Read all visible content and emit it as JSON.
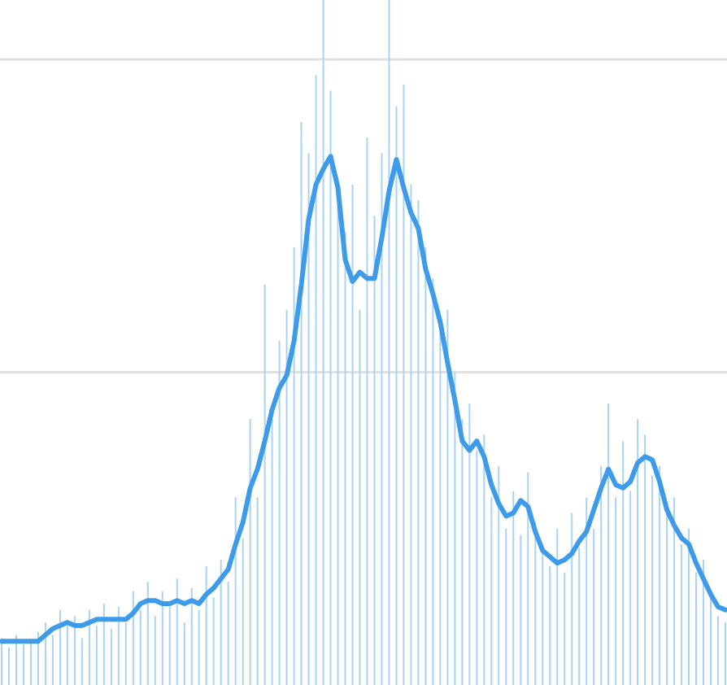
{
  "chart_data": {
    "type": "bar",
    "ylim": [
      0,
      2.19
    ],
    "yticks": [
      1,
      2
    ],
    "grid": true,
    "tick_labels": false,
    "series": [
      {
        "type": "bar",
        "color": "#a9d3f5",
        "values": [
          0.15,
          0.12,
          0.16,
          0.13,
          0.14,
          0.17,
          0.2,
          0.16,
          0.24,
          0.19,
          0.22,
          0.15,
          0.24,
          0.19,
          0.26,
          0.18,
          0.25,
          0.2,
          0.3,
          0.24,
          0.33,
          0.22,
          0.3,
          0.25,
          0.34,
          0.2,
          0.31,
          0.24,
          0.38,
          0.28,
          0.4,
          0.33,
          0.6,
          0.47,
          0.85,
          0.6,
          1.28,
          0.85,
          1.1,
          1.2,
          1.4,
          1.8,
          1.7,
          1.95,
          2.19,
          1.9,
          1.62,
          1.45,
          1.6,
          1.2,
          1.75,
          1.5,
          1.7,
          2.19,
          1.85,
          1.92,
          1.6,
          1.55,
          1.4,
          1.3,
          1.15,
          1.2,
          1.0,
          0.85,
          0.9,
          0.75,
          0.8,
          0.6,
          0.7,
          0.5,
          0.62,
          0.48,
          0.68,
          0.52,
          0.45,
          0.38,
          0.5,
          0.36,
          0.55,
          0.44,
          0.6,
          0.5,
          0.7,
          0.9,
          0.6,
          0.78,
          0.62,
          0.85,
          0.8,
          0.67,
          0.7,
          0.58,
          0.6,
          0.45,
          0.5,
          0.36,
          0.4,
          0.3,
          0.22,
          0.2
        ]
      },
      {
        "type": "line",
        "color": "#3d9be9",
        "values": [
          0.14,
          0.14,
          0.14,
          0.14,
          0.14,
          0.14,
          0.16,
          0.18,
          0.19,
          0.2,
          0.19,
          0.19,
          0.2,
          0.21,
          0.21,
          0.21,
          0.21,
          0.21,
          0.23,
          0.26,
          0.27,
          0.27,
          0.26,
          0.26,
          0.27,
          0.26,
          0.27,
          0.26,
          0.29,
          0.31,
          0.34,
          0.37,
          0.45,
          0.52,
          0.63,
          0.69,
          0.78,
          0.88,
          0.95,
          0.99,
          1.1,
          1.28,
          1.49,
          1.6,
          1.65,
          1.69,
          1.59,
          1.36,
          1.29,
          1.32,
          1.3,
          1.3,
          1.43,
          1.58,
          1.68,
          1.59,
          1.51,
          1.46,
          1.33,
          1.25,
          1.16,
          1.03,
          0.91,
          0.78,
          0.75,
          0.78,
          0.73,
          0.64,
          0.58,
          0.54,
          0.55,
          0.59,
          0.57,
          0.49,
          0.43,
          0.41,
          0.39,
          0.4,
          0.42,
          0.46,
          0.49,
          0.56,
          0.63,
          0.69,
          0.64,
          0.63,
          0.65,
          0.71,
          0.73,
          0.72,
          0.65,
          0.56,
          0.51,
          0.47,
          0.45,
          0.39,
          0.34,
          0.29,
          0.25,
          0.24
        ]
      }
    ]
  }
}
